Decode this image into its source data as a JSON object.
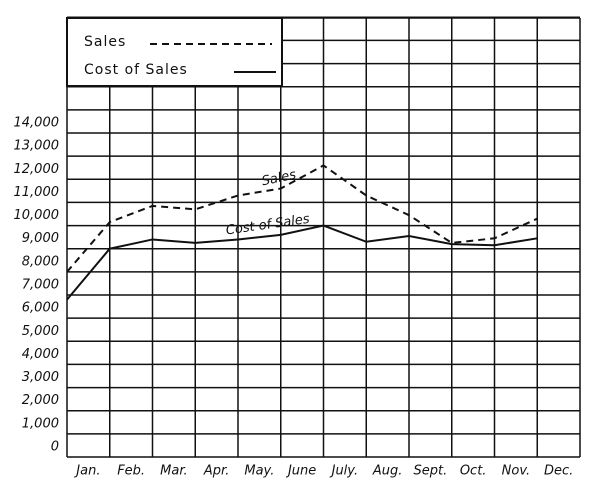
{
  "chart_data": {
    "type": "line",
    "categories": [
      "Jan.",
      "Feb.",
      "Mar.",
      "Apr.",
      "May.",
      "June",
      "July.",
      "Aug.",
      "Sept.",
      "Oct.",
      "Nov.",
      "Dec."
    ],
    "series": [
      {
        "name": "Sales",
        "color": "#111111",
        "dash": true,
        "values": [
          8000,
          10150,
          10850,
          10700,
          11300,
          11600,
          12600,
          11300,
          10450,
          9250,
          9450,
          10300
        ]
      },
      {
        "name": "Cost of Sales",
        "color": "#111111",
        "dash": false,
        "values": [
          6800,
          9000,
          9400,
          9250,
          9400,
          9600,
          10000,
          9300,
          9550,
          9200,
          9150,
          9450
        ]
      }
    ],
    "annotations": [
      "Sales",
      "Cost of Sales"
    ],
    "ylim": [
      0,
      14000
    ],
    "yticks": [
      0,
      {
        "value": 1000,
        "label": "1,000"
      },
      {
        "value": 2000,
        "label": "2,000"
      },
      {
        "value": 3000,
        "label": "3,000"
      },
      {
        "value": 4000,
        "label": "4,000"
      },
      {
        "value": 5000,
        "label": "5,000"
      },
      {
        "value": 6000,
        "label": "6,000"
      },
      {
        "value": 7000,
        "label": "7,000"
      },
      {
        "value": 8000,
        "label": "8,000"
      },
      {
        "value": 9000,
        "label": "9,000"
      },
      {
        "value": 10000,
        "label": "10,000"
      },
      {
        "value": 11000,
        "label": "11,000"
      },
      {
        "value": 12000,
        "label": "12,000"
      },
      {
        "value": 13000,
        "label": "13,000"
      },
      {
        "value": 14000,
        "label": "14,000"
      }
    ],
    "grid": true
  }
}
